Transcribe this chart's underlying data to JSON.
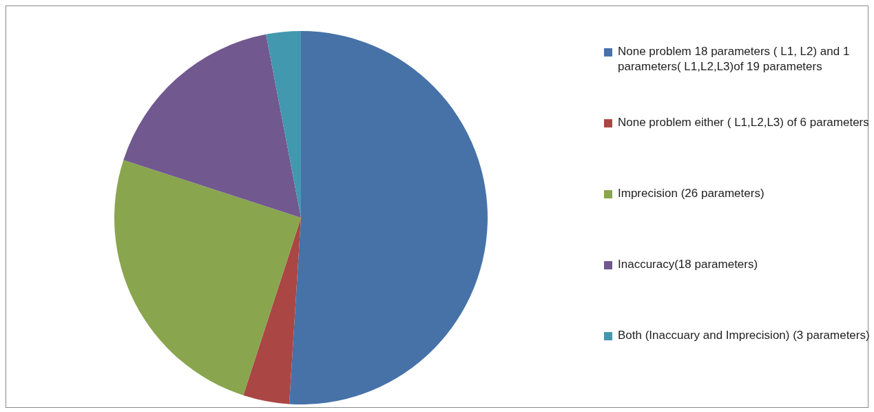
{
  "chart_data": {
    "type": "pie",
    "categories": [
      "None problem 18 parameters ( L1, L2) and 1 parameters( L1,L2,L3)of 19 parameters",
      "None problem either  ( L1,L2,L3) of 6 parameters",
      "Imprecision (26 parameters)",
      "Inaccuracy(18 parameters)",
      "Both (Inaccuary and Imprecision) (3 parameters)"
    ],
    "values": [
      51,
      4,
      25,
      17,
      3
    ],
    "colors": [
      "#4672a8",
      "#aa4644",
      "#89a54e",
      "#71588f",
      "#4298af"
    ],
    "legend": "right"
  }
}
